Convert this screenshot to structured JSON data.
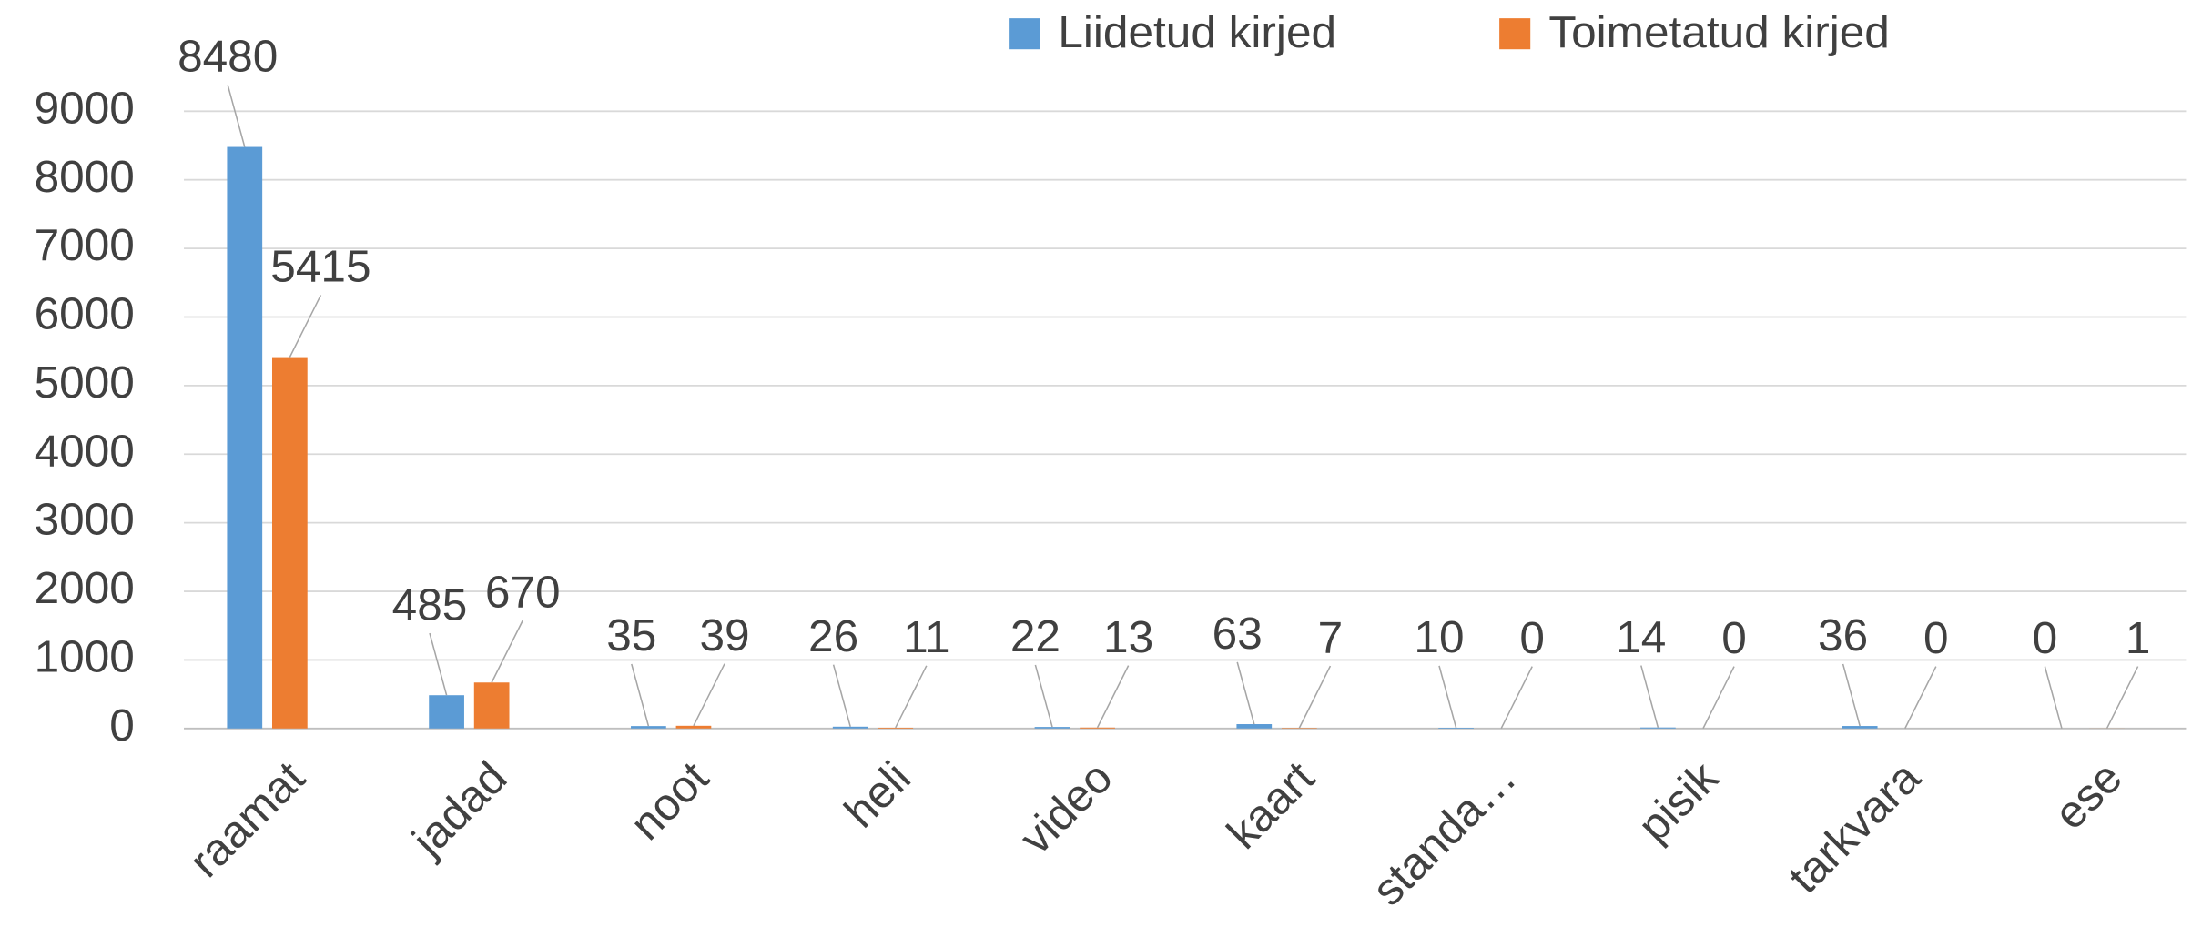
{
  "chart_data": {
    "type": "bar",
    "categories": [
      "raamat",
      "jadad",
      "noot",
      "heli",
      "video",
      "kaart",
      "standa…",
      "pisik",
      "tarkvara",
      "ese"
    ],
    "series": [
      {
        "name": "Liidetud kirjed",
        "color": "#5b9bd5",
        "values": [
          8480,
          485,
          35,
          26,
          22,
          63,
          10,
          14,
          36,
          0
        ]
      },
      {
        "name": "Toimetatud kirjed",
        "color": "#ed7d31",
        "values": [
          5415,
          670,
          39,
          11,
          13,
          7,
          0,
          0,
          0,
          1
        ]
      }
    ],
    "ylim": [
      0,
      9000
    ],
    "yticks": [
      0,
      1000,
      2000,
      3000,
      4000,
      5000,
      6000,
      7000,
      8000,
      9000
    ],
    "grid": true,
    "legend": "top"
  }
}
